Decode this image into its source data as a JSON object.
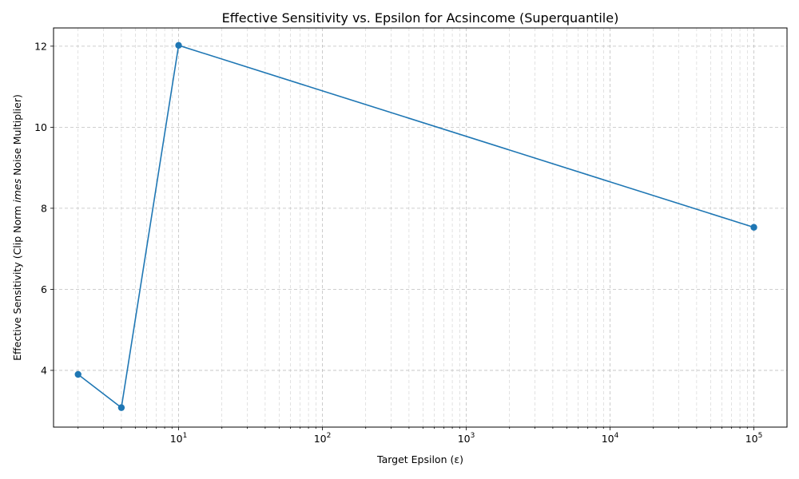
{
  "chart_data": {
    "type": "line",
    "title": "Effective Sensitivity vs. Epsilon for Acsincome (Superquantile)",
    "xlabel": "Target Epsilon (ε)",
    "ylabel": "Effective Sensitivity (Clip Norm imes Noise Multiplier)",
    "ylabel_italic_part": "imes",
    "ylabel_before": "Effective Sensitivity (Clip Norm ",
    "ylabel_after": " Noise Multiplier)",
    "x_scale": "log",
    "xlim": [
      1.35,
      170000
    ],
    "ylim": [
      2.6,
      12.45
    ],
    "grid": true,
    "x_tick_labels": [
      {
        "value": 10,
        "base": "10",
        "exp": "1"
      },
      {
        "value": 100,
        "base": "10",
        "exp": "2"
      },
      {
        "value": 1000,
        "base": "10",
        "exp": "3"
      },
      {
        "value": 10000,
        "base": "10",
        "exp": "4"
      },
      {
        "value": 100000,
        "base": "10",
        "exp": "5"
      }
    ],
    "y_ticks": [
      4,
      6,
      8,
      10,
      12
    ],
    "series": [
      {
        "color": "#1f77b4",
        "x": [
          2,
          4,
          10,
          100000
        ],
        "y": [
          3.9,
          3.08,
          12.02,
          7.53
        ]
      }
    ]
  }
}
